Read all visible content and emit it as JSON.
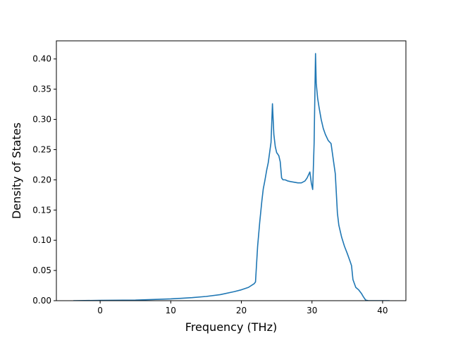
{
  "chart_data": {
    "type": "line",
    "title": "",
    "xlabel": "Frequency (THz)",
    "ylabel": "Density of States",
    "xlim": [
      -6.2,
      43.3
    ],
    "ylim": [
      0.0,
      0.43
    ],
    "xticks": [
      0,
      10,
      20,
      30,
      40
    ],
    "xtick_labels": [
      "0",
      "10",
      "20",
      "30",
      "40"
    ],
    "yticks": [
      0.0,
      0.05,
      0.1,
      0.15,
      0.2,
      0.25,
      0.3,
      0.35,
      0.4
    ],
    "ytick_labels": [
      "0.00",
      "0.05",
      "0.10",
      "0.15",
      "0.20",
      "0.25",
      "0.30",
      "0.35",
      "0.40"
    ],
    "grid": false,
    "legend": false,
    "colors": {
      "series": "#1f77b4",
      "axes": "#000000",
      "background": "#ffffff"
    },
    "series": [
      {
        "x": [
          -3.8,
          0,
          5,
          10,
          13,
          15,
          17,
          19,
          20,
          21,
          21.8,
          22.0,
          22.3,
          22.6,
          22.9,
          23.1,
          23.3,
          23.6,
          23.8,
          24.0,
          24.2,
          24.4,
          24.5,
          24.6,
          24.8,
          25.0,
          25.3,
          25.5,
          25.7,
          25.9,
          26.2,
          26.6,
          27.0,
          27.5,
          28.0,
          28.5,
          29.0,
          29.3,
          29.7,
          29.9,
          30.1,
          30.3,
          30.5,
          30.6,
          30.8,
          31.0,
          31.3,
          31.6,
          31.9,
          32.3,
          32.7,
          33.0,
          33.3,
          33.6,
          33.8,
          34.2,
          34.6,
          35.0,
          35.4,
          35.6,
          35.8,
          36.2,
          36.6,
          37.0,
          37.3,
          37.6,
          38.0,
          39.0,
          40.0,
          41.0
        ],
        "y": [
          0.0,
          0.0005,
          0.001,
          0.003,
          0.005,
          0.007,
          0.01,
          0.015,
          0.018,
          0.022,
          0.028,
          0.031,
          0.09,
          0.13,
          0.165,
          0.185,
          0.197,
          0.217,
          0.228,
          0.245,
          0.262,
          0.326,
          0.3,
          0.275,
          0.255,
          0.245,
          0.24,
          0.23,
          0.203,
          0.2,
          0.2,
          0.198,
          0.197,
          0.196,
          0.195,
          0.195,
          0.198,
          0.203,
          0.213,
          0.195,
          0.184,
          0.26,
          0.409,
          0.36,
          0.335,
          0.32,
          0.3,
          0.285,
          0.275,
          0.265,
          0.26,
          0.235,
          0.21,
          0.145,
          0.125,
          0.105,
          0.09,
          0.078,
          0.065,
          0.058,
          0.035,
          0.022,
          0.018,
          0.012,
          0.006,
          0.001,
          0.0,
          0.0,
          0.0,
          0.0
        ]
      }
    ]
  }
}
